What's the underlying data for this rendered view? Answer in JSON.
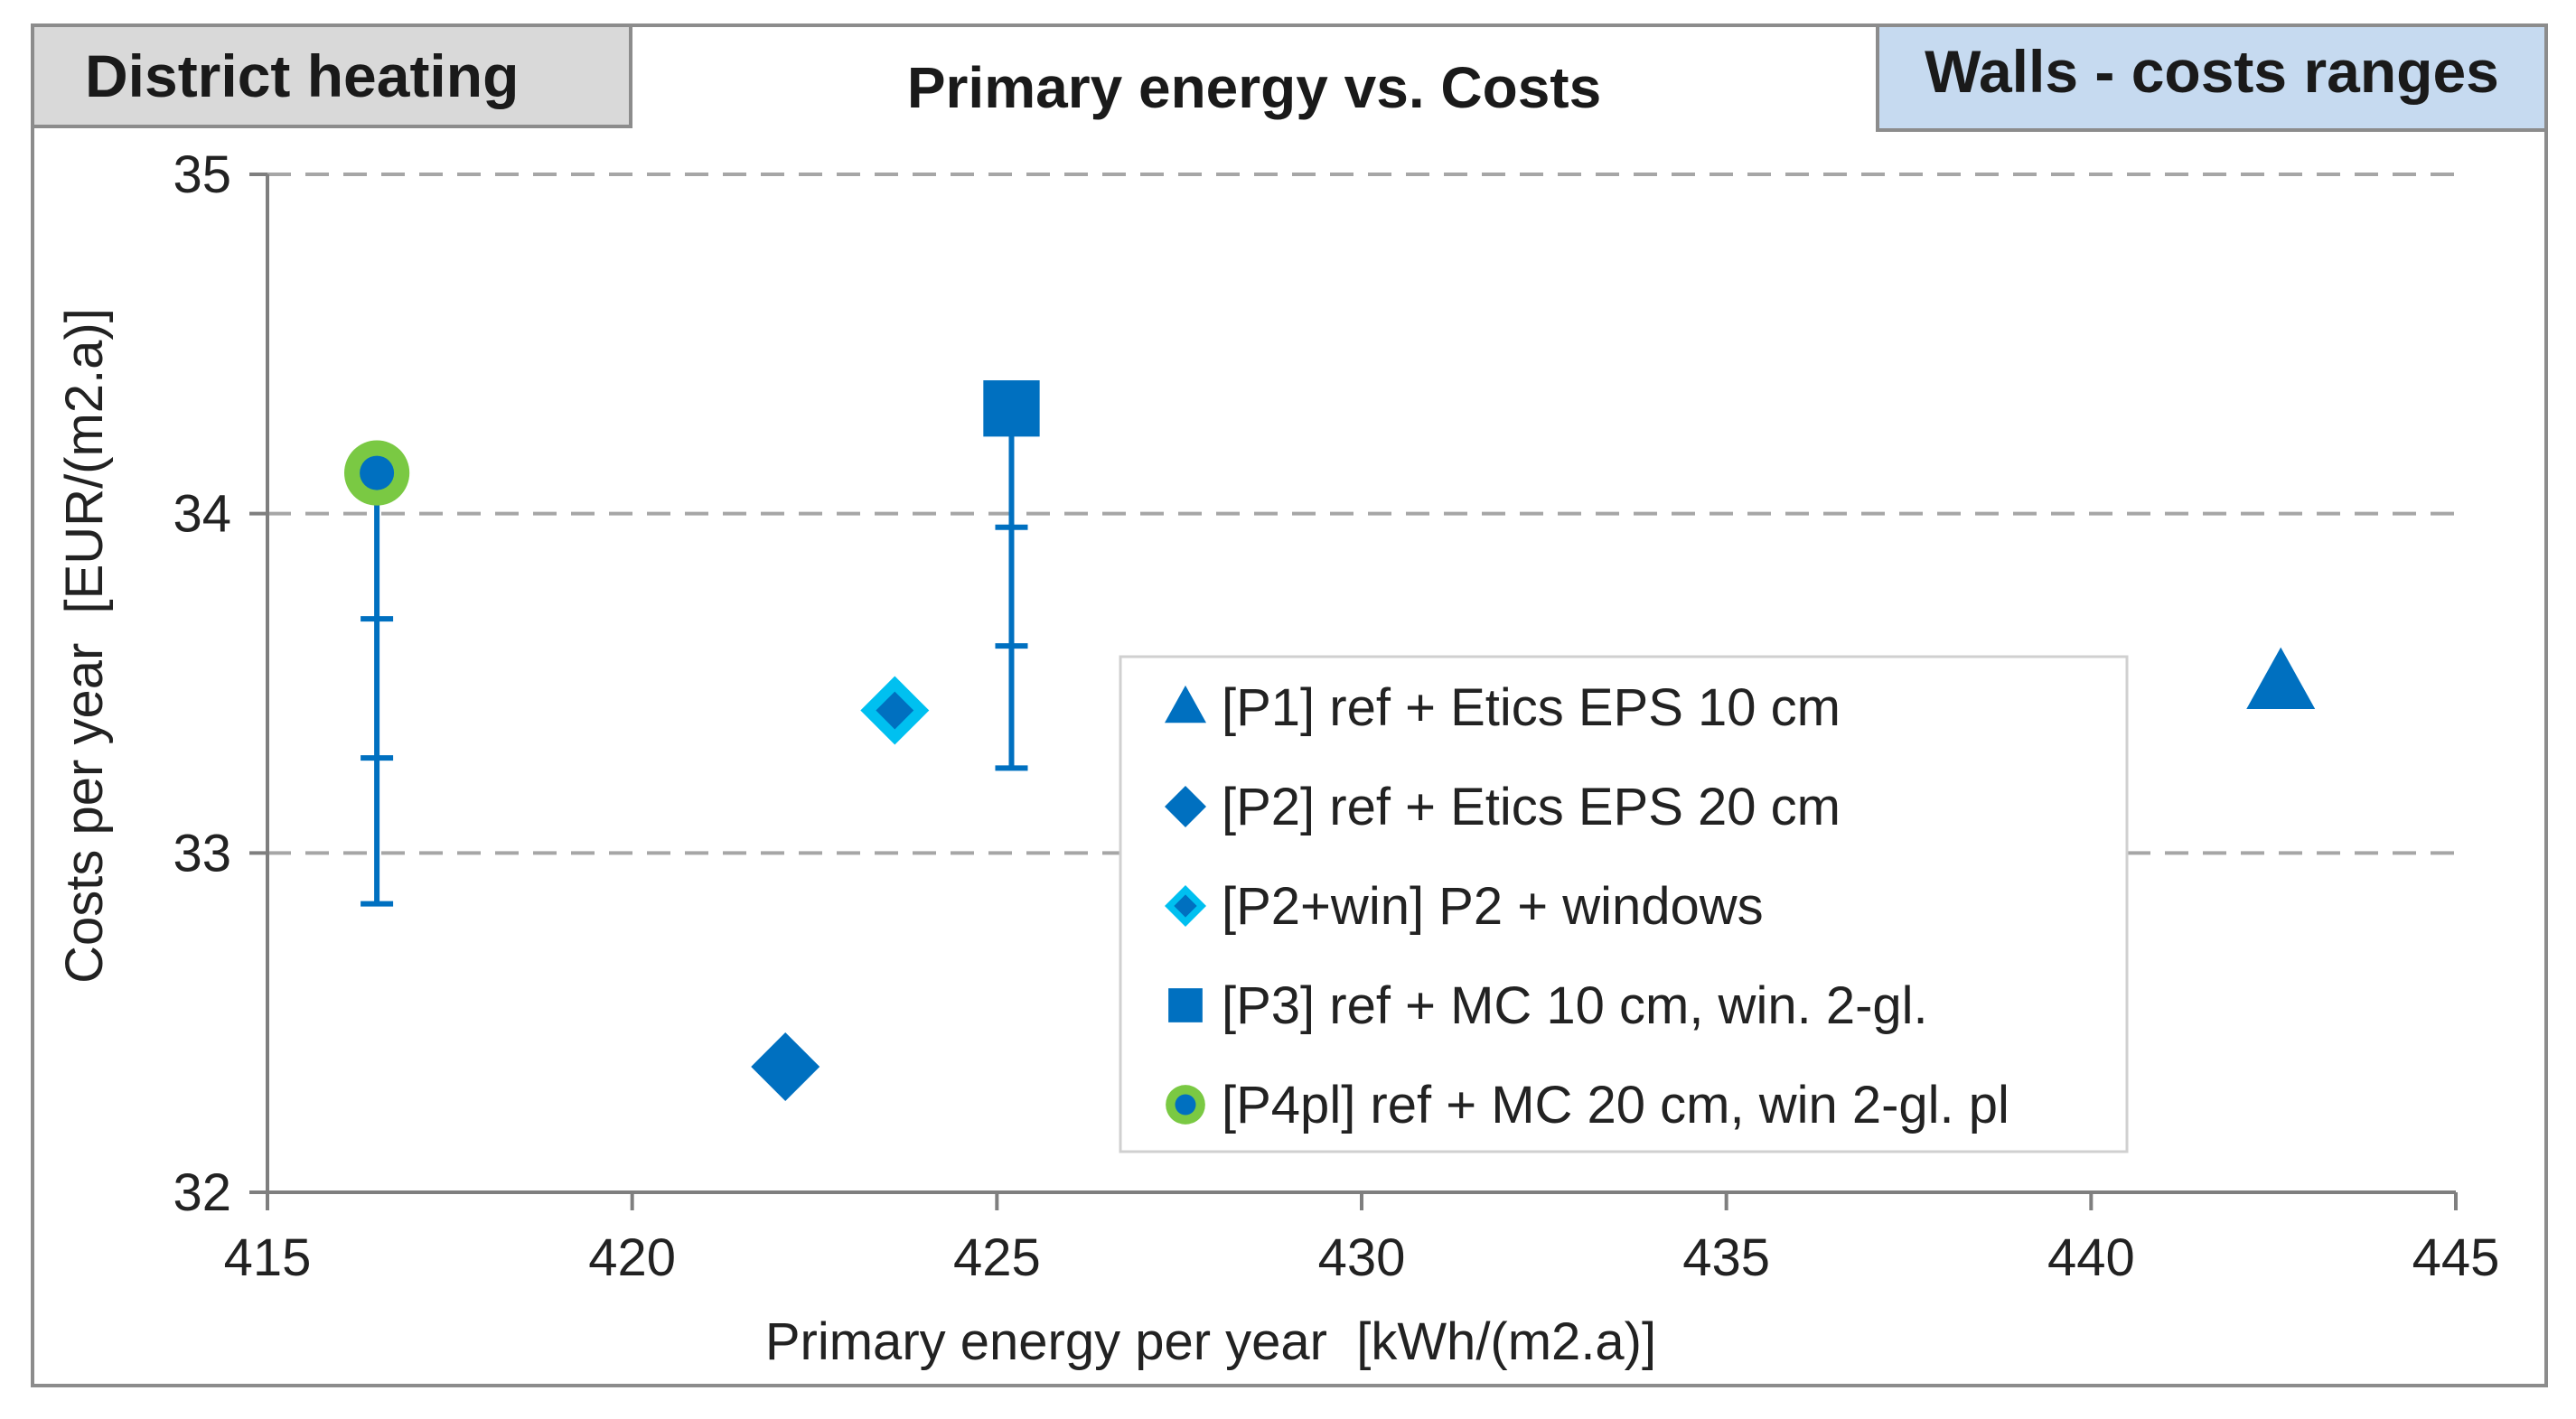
{
  "tabs": {
    "left": "District heating",
    "center": "Primary energy vs. Costs",
    "right": "Walls - costs ranges"
  },
  "chart_data": {
    "type": "scatter",
    "title": "Primary energy vs. Costs",
    "xlabel": "Primary energy per year  [kWh/(m2.a)]",
    "ylabel": "Costs per year  [EUR/(m2.a)]",
    "xlim": [
      415,
      445
    ],
    "ylim": [
      32,
      35
    ],
    "xticks": [
      415,
      420,
      425,
      430,
      435,
      440,
      445
    ],
    "yticks": [
      32,
      33,
      34,
      35
    ],
    "grid": "horizontal dashed",
    "legend_position": "center-right",
    "series": [
      {
        "name": "[P1] ref + Etics EPS 10 cm",
        "marker": "triangle",
        "color": "#0070c0",
        "x": 442.6,
        "y": 33.5
      },
      {
        "name": "[P2] ref + Etics EPS 20 cm",
        "marker": "diamond",
        "color": "#0070c0",
        "x": 422.1,
        "y": 32.37
      },
      {
        "name": "[P2+win] P2 + windows",
        "marker": "diamond-outlined",
        "color": "#0070c0",
        "outline": "#00c0f0",
        "x": 423.6,
        "y": 33.42
      },
      {
        "name": "[P3] ref + MC 10 cm, win. 2-gl.",
        "marker": "square",
        "color": "#0070c0",
        "x": 425.2,
        "y": 34.31,
        "range": {
          "min": 33.25,
          "ticks": [
            33.61,
            33.96
          ]
        }
      },
      {
        "name": "[P4pl] ref + MC 20 cm, win 2-gl. pl",
        "marker": "circle-outlined",
        "color": "#0070c0",
        "outline": "#7ac943",
        "x": 416.5,
        "y": 34.12,
        "range": {
          "min": 32.85,
          "ticks": [
            33.28,
            33.69
          ]
        }
      }
    ]
  }
}
